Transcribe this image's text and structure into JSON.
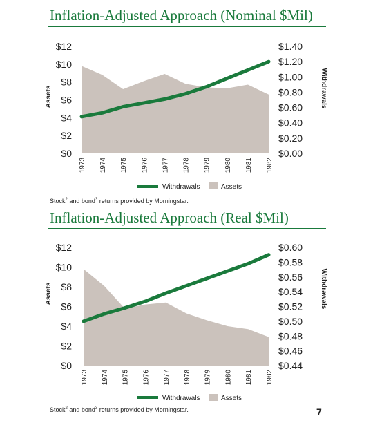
{
  "page": {
    "page_number": "7"
  },
  "chart_data": [
    {
      "type": "area+line",
      "title": "Inflation-Adjusted Approach (Nominal $Mil)",
      "categories": [
        "1973",
        "1974",
        "1975",
        "1976",
        "1977",
        "1978",
        "1979",
        "1980",
        "1981",
        "1982"
      ],
      "ylabel": "Assets",
      "y2label": "Withdrawals",
      "ylim": [
        0,
        12
      ],
      "y2lim": [
        0,
        1.4
      ],
      "yticks": [
        "$0",
        "$2",
        "$4",
        "$6",
        "$8",
        "$10",
        "$12"
      ],
      "y2ticks": [
        "$0.00",
        "$0.20",
        "$0.40",
        "$0.60",
        "$0.80",
        "$1.00",
        "$1.20",
        "$1.40"
      ],
      "series": [
        {
          "name": "Assets",
          "kind": "area",
          "axis": "left",
          "color": "#cbc2bc",
          "values": [
            9.8,
            8.8,
            7.2,
            8.1,
            8.9,
            7.8,
            7.4,
            7.3,
            7.7,
            6.6
          ]
        },
        {
          "name": "Withdrawals",
          "kind": "line",
          "axis": "right",
          "color": "#1a7a3c",
          "values": [
            0.48,
            0.53,
            0.61,
            0.66,
            0.71,
            0.78,
            0.87,
            0.98,
            1.09,
            1.2
          ]
        }
      ],
      "legend": {
        "placement": "bottom",
        "items": [
          "Withdrawals",
          "Assets"
        ]
      },
      "grid": false,
      "source": {
        "prefix": "Stock",
        "mid": " and bond",
        "suffix": " returns provided by Morningstar.",
        "sup1": "2",
        "sup2": "3"
      }
    },
    {
      "type": "area+line",
      "title": "Inflation-Adjusted Approach (Real $Mil)",
      "categories": [
        "1973",
        "1974",
        "1975",
        "1976",
        "1977",
        "1978",
        "1979",
        "1980",
        "1981",
        "1982"
      ],
      "ylabel": "Assets",
      "y2label": "Withdrawals",
      "ylim": [
        0,
        12
      ],
      "y2lim": [
        0.44,
        0.6
      ],
      "yticks": [
        "$0",
        "$2",
        "$4",
        "$6",
        "$8",
        "$10",
        "$12"
      ],
      "y2ticks": [
        "$0.44",
        "$0.46",
        "$0.48",
        "$0.50",
        "$0.52",
        "$0.54",
        "$0.56",
        "$0.58",
        "$0.60"
      ],
      "series": [
        {
          "name": "Assets",
          "kind": "area",
          "axis": "left",
          "color": "#cbc2bc",
          "values": [
            9.8,
            8.1,
            5.8,
            6.2,
            6.4,
            5.3,
            4.6,
            4.0,
            3.7,
            2.9
          ]
        },
        {
          "name": "Withdrawals",
          "kind": "line",
          "axis": "right",
          "color": "#1a7a3c",
          "values": [
            0.5,
            0.51,
            0.518,
            0.527,
            0.538,
            0.548,
            0.558,
            0.568,
            0.578,
            0.59
          ]
        }
      ],
      "legend": {
        "placement": "bottom",
        "items": [
          "Withdrawals",
          "Assets"
        ]
      },
      "grid": false,
      "source": {
        "prefix": "Stock",
        "mid": " and bond",
        "suffix": " returns provided by Morningstar.",
        "sup1": "2",
        "sup2": "3"
      }
    }
  ]
}
